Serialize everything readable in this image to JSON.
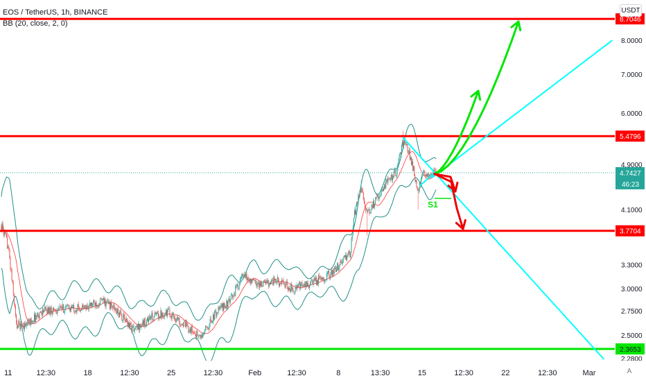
{
  "header": {
    "symbol_line": "EOS / TetherUS, 1h, BINANCE",
    "indicator_line": "BB (20, close, 2, 0)",
    "currency": "USDT",
    "auto_label": "A"
  },
  "chart_data": {
    "type": "candlestick",
    "symbol": "EOS / TetherUS",
    "interval": "1h",
    "exchange": "BINANCE",
    "scale": "log",
    "ylim": [
      2.27,
      9.2
    ],
    "grid": false,
    "y_ticks": [
      "8.0000",
      "7.0000",
      "6.0000",
      "4.9000",
      "4.1000",
      "3.3000",
      "3.0000",
      "2.7500",
      "2.5000",
      "2.2800"
    ],
    "x_ticks": [
      "11",
      "12:30",
      "18",
      "12:30",
      "25",
      "12:30",
      "Feb",
      "12:30",
      "8",
      "13:30",
      "15",
      "12:30",
      "22",
      "12:30",
      "Mar"
    ],
    "colors": {
      "up": "#26a69a",
      "down": "#ef5350",
      "band": "#208f86",
      "horizontal": "#ff0000",
      "support": "#00ff00",
      "trend": "#00ffff",
      "up_arrow": "#00e600",
      "down_arrow": "#ee0000",
      "last_price": "#26a69a"
    },
    "price_path": [
      {
        "t": 0.0,
        "p": 3.85
      },
      {
        "t": 0.8,
        "p": 3.55
      },
      {
        "t": 1.8,
        "p": 2.6
      },
      {
        "t": 3.0,
        "p": 2.6
      },
      {
        "t": 5.0,
        "p": 2.75
      },
      {
        "t": 8.0,
        "p": 2.78
      },
      {
        "t": 10.0,
        "p": 2.78
      },
      {
        "t": 12.0,
        "p": 2.86
      },
      {
        "t": 13.0,
        "p": 2.82
      },
      {
        "t": 15.0,
        "p": 2.64
      },
      {
        "t": 16.0,
        "p": 2.55
      },
      {
        "t": 18.0,
        "p": 2.68
      },
      {
        "t": 20.0,
        "p": 2.74
      },
      {
        "t": 22.0,
        "p": 2.6
      },
      {
        "t": 24.0,
        "p": 2.47
      },
      {
        "t": 26.0,
        "p": 2.75
      },
      {
        "t": 27.5,
        "p": 2.85
      },
      {
        "t": 29.0,
        "p": 3.15
      },
      {
        "t": 31.0,
        "p": 3.05
      },
      {
        "t": 33.0,
        "p": 3.1
      },
      {
        "t": 35.0,
        "p": 3.0
      },
      {
        "t": 37.0,
        "p": 3.05
      },
      {
        "t": 38.0,
        "p": 3.1
      },
      {
        "t": 40.0,
        "p": 3.2
      },
      {
        "t": 41.0,
        "p": 3.35
      },
      {
        "t": 42.0,
        "p": 3.45
      },
      {
        "t": 42.5,
        "p": 4.05
      },
      {
        "t": 43.3,
        "p": 4.5
      },
      {
        "t": 44.0,
        "p": 4.0
      },
      {
        "t": 45.0,
        "p": 4.25
      },
      {
        "t": 46.5,
        "p": 4.6
      },
      {
        "t": 47.5,
        "p": 4.75
      },
      {
        "t": 48.3,
        "p": 5.35
      },
      {
        "t": 48.9,
        "p": 5.2
      },
      {
        "t": 49.5,
        "p": 4.85
      },
      {
        "t": 50.1,
        "p": 4.4
      },
      {
        "t": 50.8,
        "p": 4.72
      },
      {
        "t": 51.6,
        "p": 4.72
      },
      {
        "t": 52.3,
        "p": 4.75
      }
    ],
    "band_width": [
      {
        "t": 0,
        "w": 0.14
      },
      {
        "t": 1,
        "w": 0.18
      },
      {
        "t": 3,
        "w": 0.08
      },
      {
        "t": 24,
        "w": 0.07
      },
      {
        "t": 27,
        "w": 0.09
      },
      {
        "t": 30,
        "w": 0.07
      },
      {
        "t": 38,
        "w": 0.05
      },
      {
        "t": 41,
        "w": 0.08
      },
      {
        "t": 43,
        "w": 0.12
      },
      {
        "t": 46,
        "w": 0.07
      },
      {
        "t": 48.5,
        "w": 0.09
      },
      {
        "t": 50.5,
        "w": 0.06
      },
      {
        "t": 52.3,
        "w": 0.05
      }
    ],
    "horizontal_levels": [
      {
        "price": 8.7046,
        "label": "8.7046",
        "color": "#ff0000"
      },
      {
        "price": 5.4796,
        "label": "5.4796",
        "color": "#ff0000"
      },
      {
        "price": 3.7704,
        "label": "3.7704",
        "color": "#ff0000"
      },
      {
        "price": 2.3653,
        "label": "2.3653",
        "color": "#00e600"
      }
    ],
    "last_price": {
      "price": 4.7427,
      "label": "4.7427",
      "countdown": "46:23"
    },
    "annotations": [
      {
        "type": "text",
        "text": "S1",
        "t": 51.3,
        "p": 4.25
      }
    ],
    "trend_lines": [
      {
        "from": {
          "t": 51.8,
          "p": 4.65
        },
        "to": {
          "t": 73.5,
          "p": 8.0
        }
      },
      {
        "from": {
          "t": 48.3,
          "p": 5.45
        },
        "to": {
          "t": 72.5,
          "p": 2.27
        }
      },
      {
        "from": {
          "t": 50.3,
          "p": 4.5
        },
        "to": {
          "t": 52.2,
          "p": 4.75
        }
      }
    ]
  }
}
